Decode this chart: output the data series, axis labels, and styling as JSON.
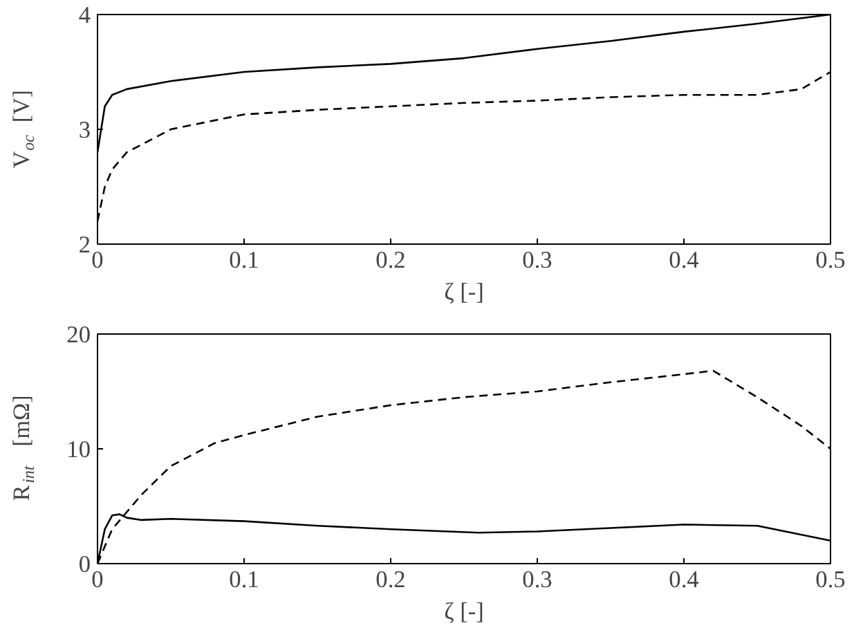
{
  "chart_data": [
    {
      "type": "line",
      "xlabel": "ζ [-]",
      "ylabel": "V$_{oc}$ [V]",
      "xlim": [
        0,
        0.5
      ],
      "ylim": [
        2,
        4
      ],
      "xticks": [
        0,
        0.1,
        0.2,
        0.3,
        0.4,
        0.5
      ],
      "yticks": [
        2,
        3,
        4
      ],
      "grid": false,
      "series": [
        {
          "color": "#000000",
          "line_style": "solid",
          "x": [
            0,
            0.005,
            0.01,
            0.02,
            0.05,
            0.1,
            0.15,
            0.2,
            0.25,
            0.3,
            0.35,
            0.4,
            0.45,
            0.5
          ],
          "values": [
            2.8,
            3.2,
            3.3,
            3.35,
            3.42,
            3.5,
            3.54,
            3.57,
            3.62,
            3.7,
            3.77,
            3.85,
            3.92,
            4.0
          ]
        },
        {
          "color": "#000000",
          "line_style": "dashed",
          "x": [
            0,
            0.005,
            0.01,
            0.02,
            0.05,
            0.1,
            0.15,
            0.2,
            0.25,
            0.3,
            0.35,
            0.4,
            0.45,
            0.48,
            0.5
          ],
          "values": [
            2.2,
            2.5,
            2.65,
            2.8,
            3.0,
            3.13,
            3.17,
            3.2,
            3.23,
            3.25,
            3.28,
            3.3,
            3.3,
            3.35,
            3.5
          ]
        }
      ]
    },
    {
      "type": "line",
      "xlabel": "ζ [-]",
      "ylabel": "R$_{int}$ [mΩ]",
      "xlim": [
        0,
        0.5
      ],
      "ylim": [
        0,
        20
      ],
      "xticks": [
        0,
        0.1,
        0.2,
        0.3,
        0.4,
        0.5
      ],
      "yticks": [
        0,
        10,
        20
      ],
      "grid": false,
      "series": [
        {
          "color": "#000000",
          "line_style": "dashed",
          "x": [
            0,
            0.01,
            0.03,
            0.05,
            0.08,
            0.1,
            0.15,
            0.2,
            0.25,
            0.3,
            0.35,
            0.4,
            0.42,
            0.45,
            0.48,
            0.5
          ],
          "values": [
            0,
            3,
            6,
            8.5,
            10.5,
            11.2,
            12.8,
            13.8,
            14.5,
            15,
            15.8,
            16.5,
            16.8,
            14.5,
            12,
            10
          ]
        },
        {
          "color": "#000000",
          "line_style": "solid",
          "x": [
            0,
            0.005,
            0.01,
            0.015,
            0.02,
            0.03,
            0.05,
            0.1,
            0.15,
            0.2,
            0.26,
            0.3,
            0.35,
            0.4,
            0.45,
            0.5
          ],
          "values": [
            0,
            3,
            4.2,
            4.3,
            4,
            3.8,
            3.9,
            3.7,
            3.3,
            3,
            2.7,
            2.8,
            3.1,
            3.4,
            3.3,
            2
          ]
        }
      ]
    }
  ]
}
